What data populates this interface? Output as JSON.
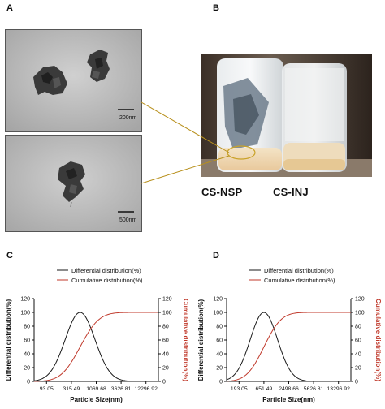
{
  "figure": {
    "panels": {
      "A": "A",
      "B": "B",
      "C": "C",
      "D": "D"
    },
    "tem": [
      {
        "scale_label": "200nm"
      },
      {
        "scale_label": "500nm"
      }
    ],
    "photo": {
      "labels": [
        "CS-NSP",
        "CS-INJ"
      ]
    },
    "colors": {
      "differential": "#1a1a1a",
      "cumulative": "#c0392b",
      "connector": "#b8901c"
    }
  },
  "chart_data": [
    {
      "type": "line",
      "panel": "C",
      "xlabel": "Particle Size(nm)",
      "ylabel": "Differential distribution(%)",
      "y2label": "Cumulative distribution(%)",
      "x_tick_labels": [
        "93.05",
        "315.49",
        "1069.68",
        "3626.81",
        "12296.92"
      ],
      "y_ticks": [
        0,
        20,
        40,
        60,
        80,
        100,
        120
      ],
      "y2_ticks": [
        0,
        20,
        40,
        60,
        80,
        100,
        120
      ],
      "ylim": [
        0,
        120
      ],
      "legend": [
        "Differential distribution(%)",
        "Cumulative distribution(%)"
      ],
      "legend_position": "top",
      "series": [
        {
          "name": "Differential distribution(%)",
          "shape": "gaussian",
          "peak_x_fraction": 0.37,
          "sigma_fraction": 0.12,
          "peak": 100
        },
        {
          "name": "Cumulative distribution(%)",
          "shape": "sigmoid",
          "mid_x_fraction": 0.37,
          "sigma_fraction": 0.12,
          "max": 100
        }
      ]
    },
    {
      "type": "line",
      "panel": "D",
      "xlabel": "Particle Size(nm)",
      "ylabel": "Differential distribution(%)",
      "y2label": "Cumulative distribution(%)",
      "x_tick_labels": [
        "193.05",
        "651.49",
        "2498.66",
        "5626.81",
        "13296.92"
      ],
      "y_ticks": [
        0,
        20,
        40,
        60,
        80,
        100,
        120
      ],
      "y2_ticks": [
        0,
        20,
        40,
        60,
        80,
        100,
        120
      ],
      "ylim": [
        0,
        120
      ],
      "legend": [
        "Differential distribution(%)",
        "Cumulative distribution(%)"
      ],
      "legend_position": "top",
      "series": [
        {
          "name": "Differential distribution(%)",
          "shape": "gaussian",
          "peak_x_fraction": 0.3,
          "sigma_fraction": 0.11,
          "peak": 100
        },
        {
          "name": "Cumulative distribution(%)",
          "shape": "sigmoid",
          "mid_x_fraction": 0.3,
          "sigma_fraction": 0.11,
          "max": 100
        }
      ]
    }
  ]
}
